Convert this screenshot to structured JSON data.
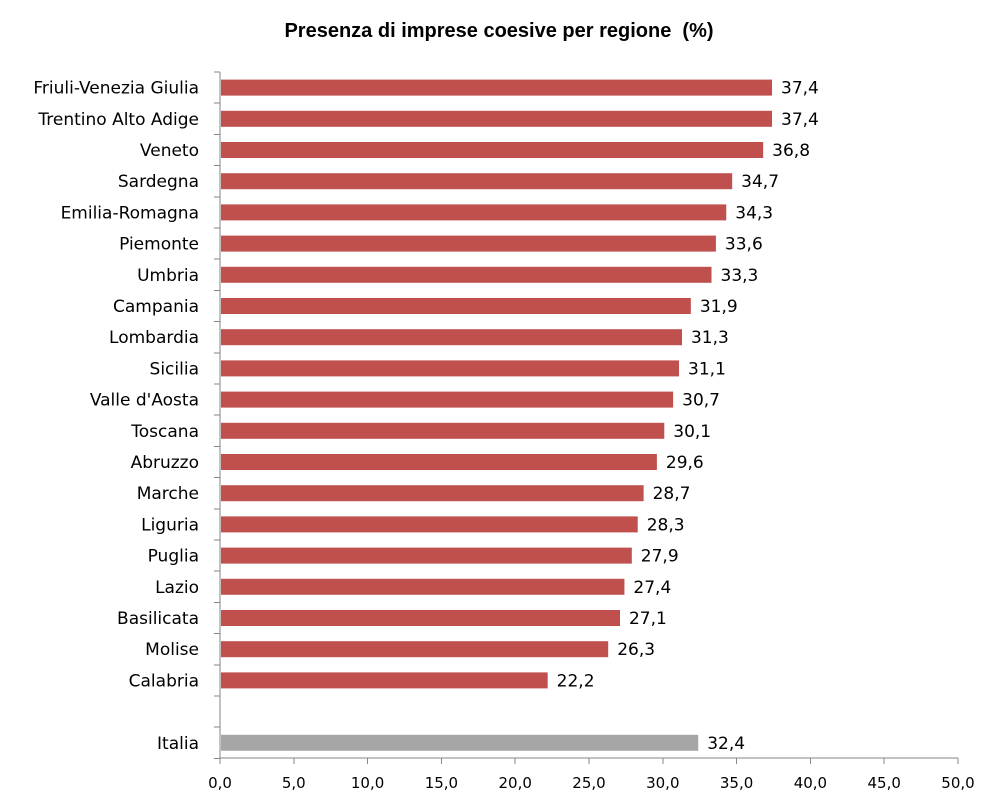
{
  "chart_data": {
    "type": "bar",
    "orientation": "horizontal",
    "title": "Presenza di imprese coesive per regione  (%)",
    "xlabel": "",
    "ylabel": "",
    "categories": [
      "Friuli-Venezia Giulia",
      "Trentino Alto Adige",
      "Veneto",
      "Sardegna",
      "Emilia-Romagna",
      "Piemonte",
      "Umbria",
      "Campania",
      "Lombardia",
      "Sicilia",
      "Valle d'Aosta",
      "Toscana",
      "Abruzzo",
      "Marche",
      "Liguria",
      "Puglia",
      "Lazio",
      "Basilicata",
      "Molise",
      "Calabria"
    ],
    "values": [
      37.4,
      37.4,
      36.8,
      34.7,
      34.3,
      33.6,
      33.3,
      31.9,
      31.3,
      31.1,
      30.7,
      30.1,
      29.6,
      28.7,
      28.3,
      27.9,
      27.4,
      27.1,
      26.3,
      22.2
    ],
    "value_labels": [
      "37,4",
      "37,4",
      "36,8",
      "34,7",
      "34,3",
      "33,6",
      "33,3",
      "31,9",
      "31,3",
      "31,1",
      "30,7",
      "30,1",
      "29,6",
      "28,7",
      "28,3",
      "27,9",
      "27,4",
      "27,1",
      "26,3",
      "22,2"
    ],
    "total": {
      "category": "Italia",
      "value": 32.4,
      "value_label": "32,4"
    },
    "xlim": [
      0,
      50
    ],
    "x_ticks": [
      0,
      5,
      10,
      15,
      20,
      25,
      30,
      35,
      40,
      45,
      50
    ],
    "x_tick_labels": [
      "0,0",
      "5,0",
      "10,0",
      "15,0",
      "20,0",
      "25,0",
      "30,0",
      "35,0",
      "40,0",
      "45,0",
      "50,0"
    ],
    "grid": false,
    "legend": "none",
    "colors": {
      "regions": "#c0504d",
      "total": "#a6a6a6",
      "axis": "#868686"
    }
  }
}
